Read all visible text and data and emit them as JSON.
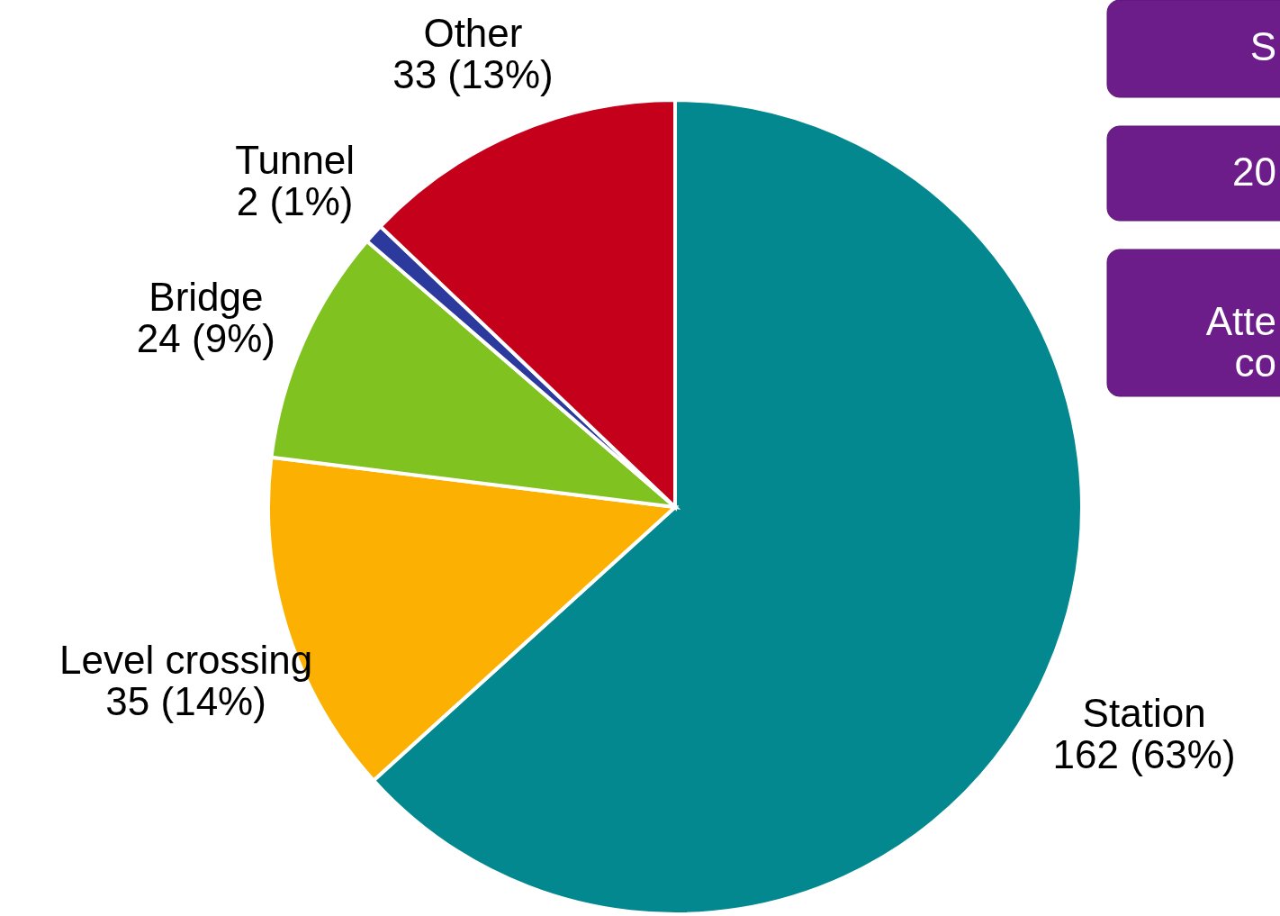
{
  "chart_data": {
    "type": "pie",
    "categories": [
      "Station",
      "Level crossing",
      "Bridge",
      "Tunnel",
      "Other"
    ],
    "values": [
      162,
      35,
      24,
      2,
      33
    ],
    "value_labels": [
      "162 (63%)",
      "35 (14%)",
      "24 (9%)",
      "2 (1%)",
      "33 (13%)"
    ],
    "colors": [
      "#02888e",
      "#fcb002",
      "#80c21f",
      "#2b3a9c",
      "#c4001a"
    ],
    "annotations": [
      "S",
      "20",
      "Atte\nco"
    ]
  }
}
